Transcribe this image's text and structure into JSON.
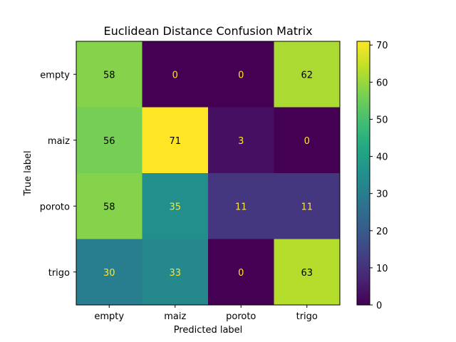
{
  "chart_data": {
    "type": "heatmap",
    "title": "Euclidean Distance Confusion Matrix",
    "xlabel": "Predicted label",
    "ylabel": "True label",
    "x_categories": [
      "empty",
      "maiz",
      "poroto",
      "trigo"
    ],
    "y_categories": [
      "empty",
      "maiz",
      "poroto",
      "trigo"
    ],
    "values": [
      [
        58,
        0,
        0,
        62
      ],
      [
        56,
        71,
        3,
        0
      ],
      [
        58,
        35,
        11,
        11
      ],
      [
        30,
        33,
        0,
        63
      ]
    ],
    "colormap": "viridis",
    "colorbar": {
      "min": 0,
      "max": 71,
      "ticks": [
        0,
        10,
        20,
        30,
        40,
        50,
        60,
        70
      ]
    },
    "grid": false
  }
}
